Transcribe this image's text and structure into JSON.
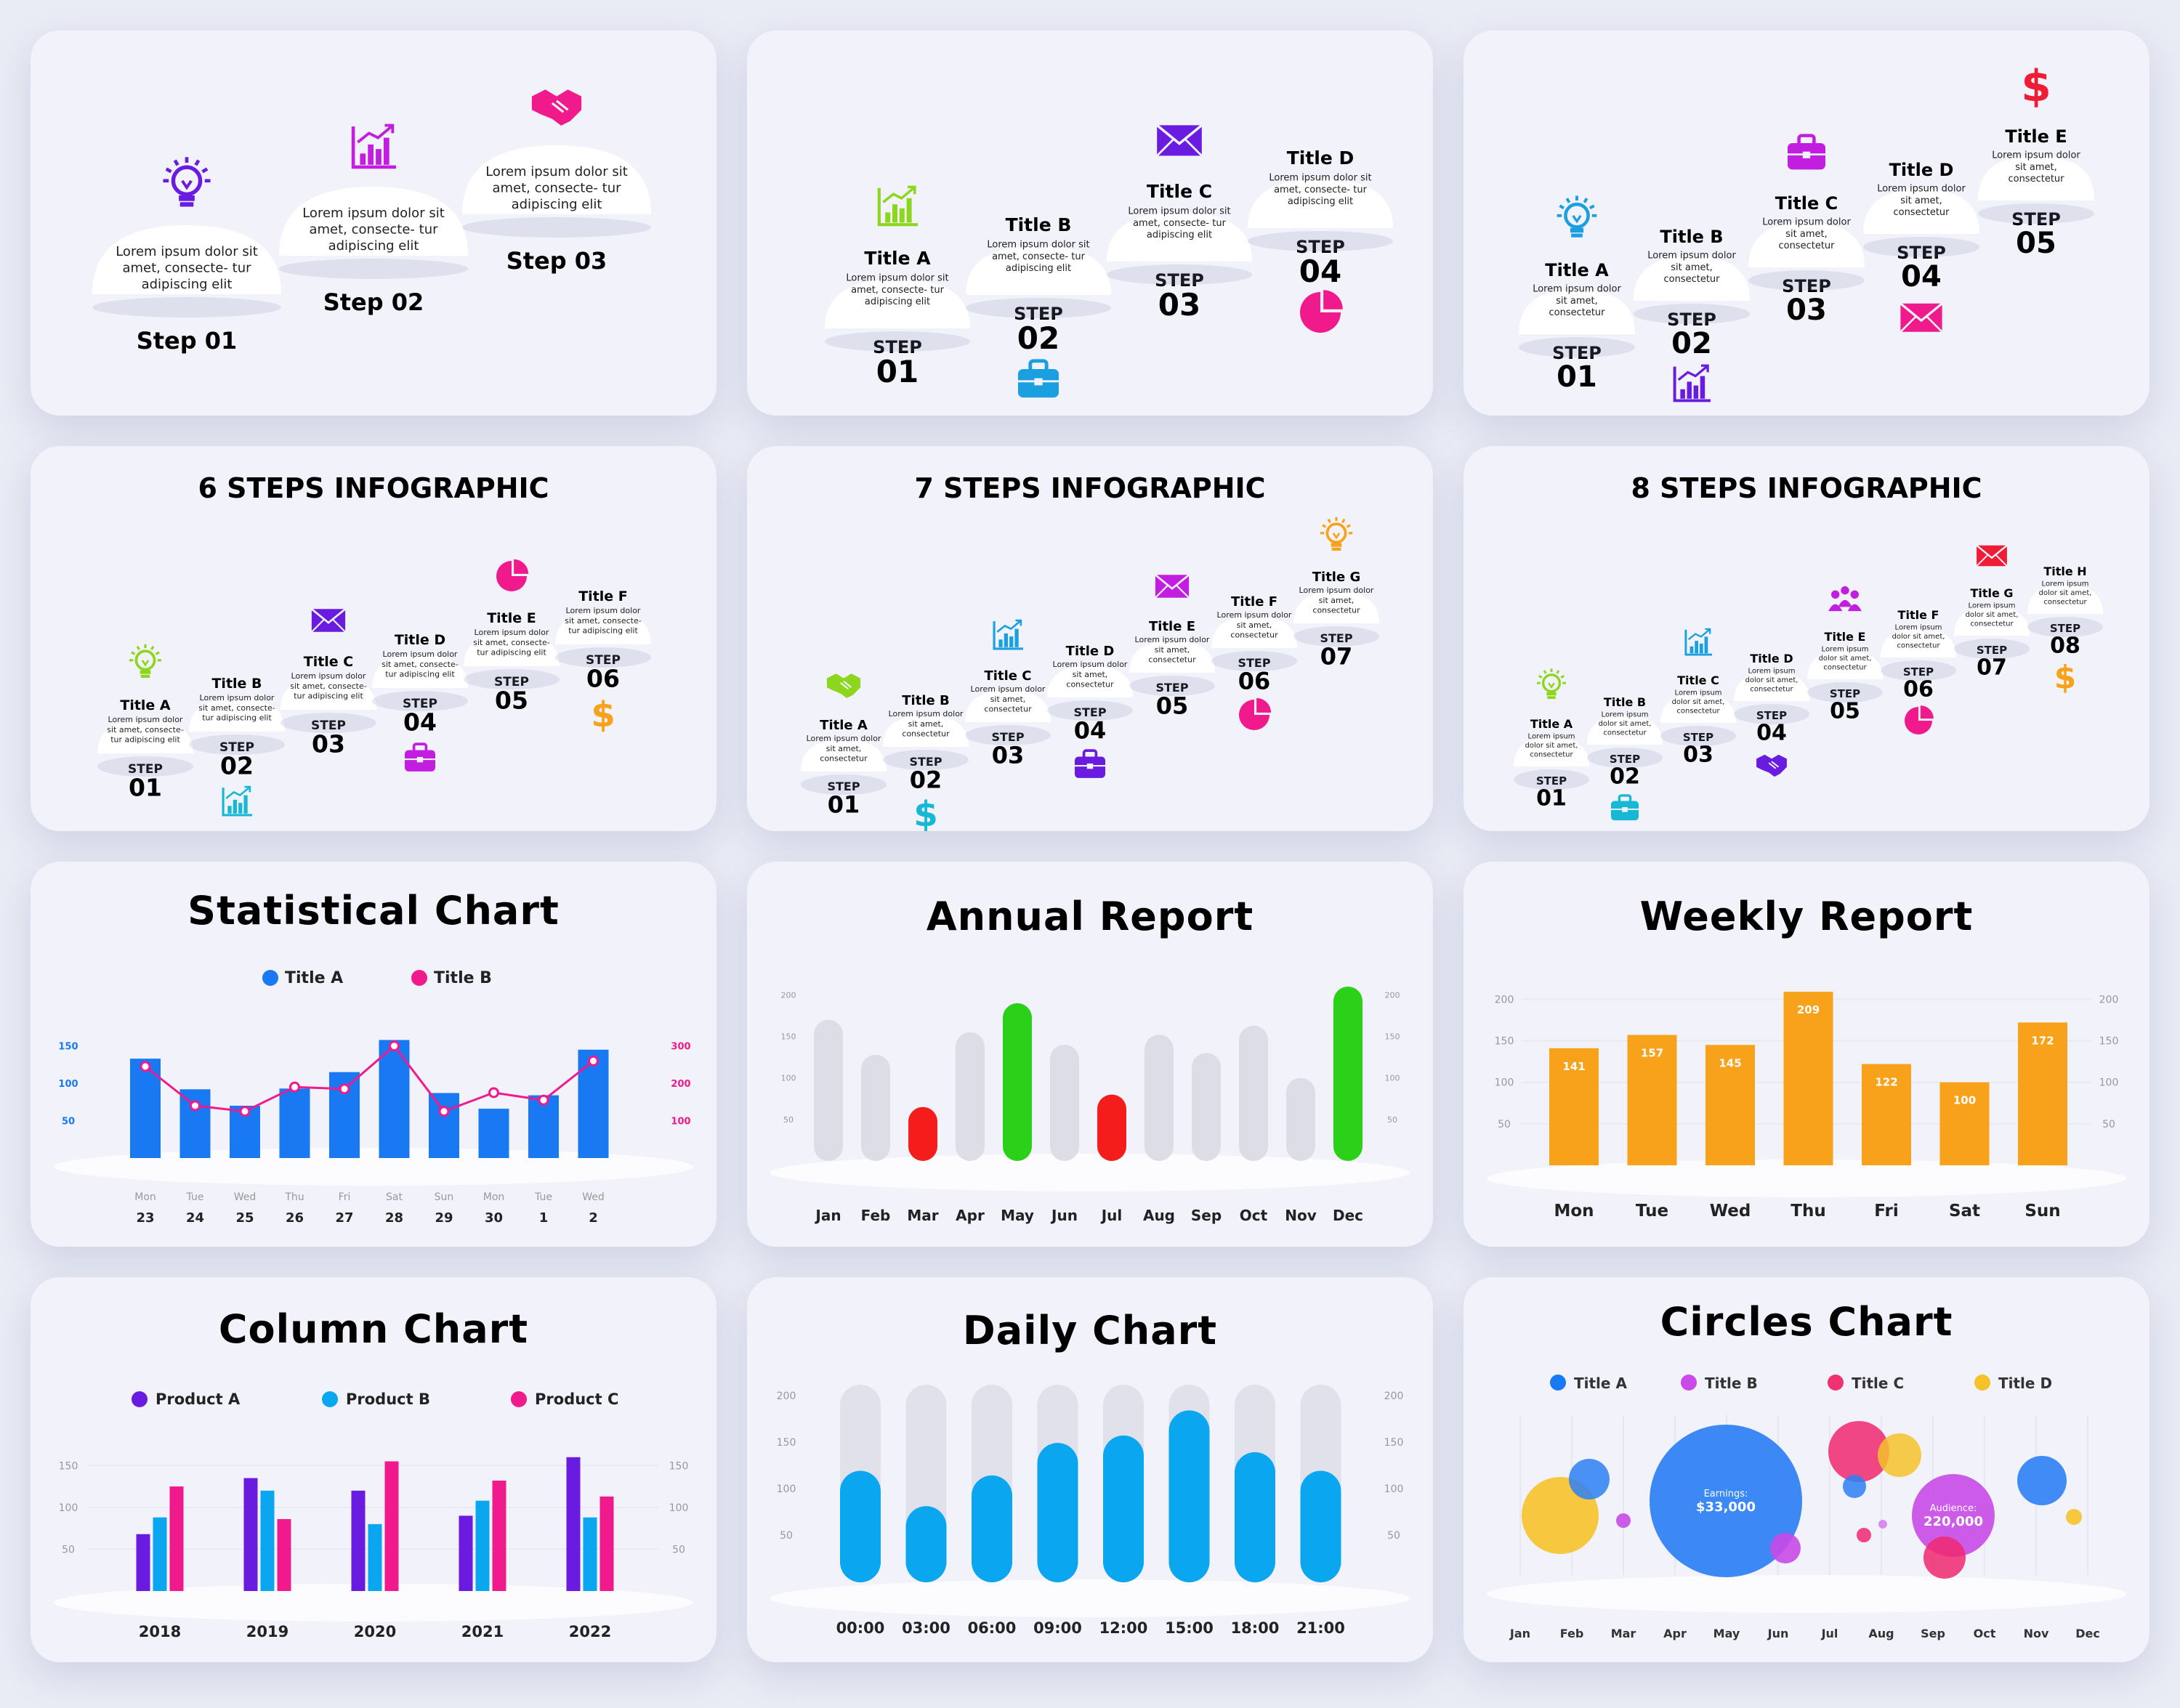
{
  "colors": {
    "purple": "#6a1be0",
    "green": "#8cd61e",
    "teal": "#17b8d6",
    "cyan": "#1a9fe0",
    "magenta": "#c21ee0",
    "pink": "#f01a8c",
    "red": "#ef1c36",
    "orange": "#f7a21a",
    "blue": "#1979f2",
    "grey_bar": "#dcdde6",
    "green_bar": "#2bd118",
    "red_bar": "#f51c1c",
    "light_blue": "#0aa6f0"
  },
  "steps3": {
    "items": [
      {
        "label": "Step 01",
        "text": "Lorem ipsum dolor sit amet, consecte- tur adipiscing elit",
        "icon": "lightbulb-icon",
        "color": "purple"
      },
      {
        "label": "Step 02",
        "text": "Lorem ipsum dolor sit amet, consecte- tur adipiscing elit",
        "icon": "bar-chart-icon",
        "color": "magenta"
      },
      {
        "label": "Step 03",
        "text": "Lorem ipsum dolor sit amet, consecte- tur adipiscing elit",
        "icon": "handshake-icon",
        "color": "pink"
      }
    ]
  },
  "steps4": {
    "items": [
      {
        "step": "STEP",
        "num": "01",
        "title": "Title A",
        "text": "Lorem ipsum dolor sit amet, consecte- tur adipiscing elit",
        "icon": "bar-chart-icon",
        "color": "green"
      },
      {
        "step": "STEP",
        "num": "02",
        "title": "Title B",
        "text": "Lorem ipsum dolor sit amet, consecte- tur adipiscing elit",
        "icon": "briefcase-icon",
        "color": "cyan"
      },
      {
        "step": "STEP",
        "num": "03",
        "title": "Title C",
        "text": "Lorem ipsum dolor sit amet, consecte- tur adipiscing elit",
        "icon": "envelope-icon",
        "color": "purple"
      },
      {
        "step": "STEP",
        "num": "04",
        "title": "Title D",
        "text": "Lorem ipsum dolor sit amet, consecte- tur adipiscing elit",
        "icon": "pie-chart-icon",
        "color": "pink"
      }
    ]
  },
  "steps5": {
    "items": [
      {
        "step": "STEP",
        "num": "01",
        "title": "Title A",
        "text": "Lorem ipsum dolor sit amet, consectetur",
        "icon": "lightbulb-icon",
        "color": "cyan"
      },
      {
        "step": "STEP",
        "num": "02",
        "title": "Title B",
        "text": "Lorem ipsum dolor sit amet, consectetur",
        "icon": "bar-chart-icon",
        "color": "purple"
      },
      {
        "step": "STEP",
        "num": "03",
        "title": "Title C",
        "text": "Lorem ipsum dolor sit amet, consectetur",
        "icon": "briefcase-icon",
        "color": "magenta"
      },
      {
        "step": "STEP",
        "num": "04",
        "title": "Title D",
        "text": "Lorem ipsum dolor sit amet, consectetur",
        "icon": "envelope-icon",
        "color": "pink"
      },
      {
        "step": "STEP",
        "num": "05",
        "title": "Title E",
        "text": "Lorem ipsum dolor sit amet, consectetur",
        "icon": "dollar-icon",
        "color": "red"
      }
    ]
  },
  "steps6": {
    "title": "6 STEPS INFOGRAPHIC",
    "items": [
      {
        "step": "STEP",
        "num": "01",
        "title": "Title A",
        "text": "Lorem ipsum dolor sit amet, consecte- tur adipiscing elit",
        "icon": "lightbulb-icon",
        "color": "green"
      },
      {
        "step": "STEP",
        "num": "02",
        "title": "Title B",
        "text": "Lorem ipsum dolor sit amet, consecte- tur adipiscing elit",
        "icon": "bar-chart-icon",
        "color": "teal"
      },
      {
        "step": "STEP",
        "num": "03",
        "title": "Title C",
        "text": "Lorem ipsum dolor sit amet, consecte- tur adipiscing elit",
        "icon": "envelope-icon",
        "color": "purple"
      },
      {
        "step": "STEP",
        "num": "04",
        "title": "Title D",
        "text": "Lorem ipsum dolor sit amet, consecte- tur adipiscing elit",
        "icon": "briefcase-icon",
        "color": "magenta"
      },
      {
        "step": "STEP",
        "num": "05",
        "title": "Title E",
        "text": "Lorem ipsum dolor sit amet, consecte- tur adipiscing elit",
        "icon": "pie-chart-icon",
        "color": "pink"
      },
      {
        "step": "STEP",
        "num": "06",
        "title": "Title F",
        "text": "Lorem ipsum dolor sit amet, consecte- tur adipiscing elit",
        "icon": "dollar-icon",
        "color": "orange"
      }
    ]
  },
  "steps7": {
    "title": "7 STEPS INFOGRAPHIC",
    "items": [
      {
        "step": "STEP",
        "num": "01",
        "title": "Title A",
        "text": "Lorem ipsum dolor sit amet, consectetur",
        "icon": "handshake-icon",
        "color": "green"
      },
      {
        "step": "STEP",
        "num": "02",
        "title": "Title B",
        "text": "Lorem ipsum dolor sit amet, consectetur",
        "icon": "dollar-icon",
        "color": "teal"
      },
      {
        "step": "STEP",
        "num": "03",
        "title": "Title C",
        "text": "Lorem ipsum dolor sit amet, consectetur",
        "icon": "bar-chart-icon",
        "color": "cyan"
      },
      {
        "step": "STEP",
        "num": "04",
        "title": "Title D",
        "text": "Lorem ipsum dolor sit amet, consectetur",
        "icon": "briefcase-icon",
        "color": "purple"
      },
      {
        "step": "STEP",
        "num": "05",
        "title": "Title E",
        "text": "Lorem ipsum dolor sit amet, consectetur",
        "icon": "envelope-icon",
        "color": "magenta"
      },
      {
        "step": "STEP",
        "num": "06",
        "title": "Title F",
        "text": "Lorem ipsum dolor sit amet, consectetur",
        "icon": "pie-chart-icon",
        "color": "pink"
      },
      {
        "step": "STEP",
        "num": "07",
        "title": "Title G",
        "text": "Lorem ipsum dolor sit amet, consectetur",
        "icon": "lightbulb-icon",
        "color": "orange"
      }
    ]
  },
  "steps8": {
    "title": "8 STEPS INFOGRAPHIC",
    "items": [
      {
        "step": "STEP",
        "num": "01",
        "title": "Title A",
        "text": "Lorem ipsum dolor sit amet, consectetur",
        "icon": "lightbulb-icon",
        "color": "green"
      },
      {
        "step": "STEP",
        "num": "02",
        "title": "Title B",
        "text": "Lorem ipsum dolor sit amet, consectetur",
        "icon": "briefcase-icon",
        "color": "teal"
      },
      {
        "step": "STEP",
        "num": "03",
        "title": "Title C",
        "text": "Lorem ipsum dolor sit amet, consectetur",
        "icon": "bar-chart-icon",
        "color": "cyan"
      },
      {
        "step": "STEP",
        "num": "04",
        "title": "Title D",
        "text": "Lorem ipsum dolor sit amet, consectetur",
        "icon": "handshake-icon",
        "color": "purple"
      },
      {
        "step": "STEP",
        "num": "05",
        "title": "Title E",
        "text": "Lorem ipsum dolor sit amet, consectetur",
        "icon": "people-icon",
        "color": "magenta"
      },
      {
        "step": "STEP",
        "num": "06",
        "title": "Title F",
        "text": "Lorem ipsum dolor sit amet, consectetur",
        "icon": "pie-chart-icon",
        "color": "pink"
      },
      {
        "step": "STEP",
        "num": "07",
        "title": "Title G",
        "text": "Lorem ipsum dolor sit amet, consectetur",
        "icon": "envelope-icon",
        "color": "red"
      },
      {
        "step": "STEP",
        "num": "08",
        "title": "Title H",
        "text": "Lorem ipsum dolor sit amet, consectetur",
        "icon": "dollar-icon",
        "color": "orange"
      }
    ]
  },
  "chart_data": [
    {
      "id": "statistical",
      "type": "bar",
      "title": "Statistical Chart",
      "legend": [
        "Title A",
        "Title B"
      ],
      "categories": [
        "Mon 23",
        "Tue 24",
        "Wed 25",
        "Thu 26",
        "Fri 27",
        "Sat 28",
        "Sun 29",
        "Mon 30",
        "Tue 1",
        "Wed 2"
      ],
      "days": [
        "Mon",
        "Tue",
        "Wed",
        "Thu",
        "Fri",
        "Sat",
        "Sun",
        "Mon",
        "Tue",
        "Wed"
      ],
      "dates": [
        "23",
        "24",
        "25",
        "26",
        "27",
        "28",
        "29",
        "30",
        "1",
        "2"
      ],
      "series": [
        {
          "name": "Title A",
          "type": "bar",
          "values": [
            133,
            92,
            70,
            93,
            115,
            158,
            87,
            66,
            84,
            145
          ]
        },
        {
          "name": "Title B",
          "type": "line",
          "values": [
            245,
            140,
            125,
            190,
            185,
            300,
            125,
            175,
            155,
            260
          ]
        }
      ],
      "ylim": [
        0,
        175
      ],
      "yticks": [
        "50",
        "100",
        "150"
      ],
      "y2lim": [
        0,
        350
      ],
      "y2ticks": [
        "100",
        "200",
        "300"
      ]
    },
    {
      "id": "annual",
      "type": "bar",
      "title": "Annual Report",
      "categories": [
        "Jan",
        "Feb",
        "Mar",
        "Apr",
        "May",
        "Jun",
        "Jul",
        "Aug",
        "Sep",
        "Oct",
        "Nov",
        "Dec"
      ],
      "values": [
        170,
        128,
        65,
        155,
        190,
        140,
        80,
        152,
        130,
        163,
        100,
        210
      ],
      "highlight": {
        "Mar": "red",
        "May": "green",
        "Jul": "red",
        "Dec": "green"
      },
      "ylim": [
        0,
        210
      ],
      "yticks": [
        "50",
        "100",
        "150",
        "200"
      ]
    },
    {
      "id": "weekly",
      "type": "bar",
      "title": "Weekly Report",
      "categories": [
        "Mon",
        "Tue",
        "Wed",
        "Thu",
        "Fri",
        "Sat",
        "Sun"
      ],
      "values": [
        141,
        157,
        145,
        209,
        122,
        100,
        172
      ],
      "labels": [
        "141",
        "157",
        "145",
        "209",
        "122",
        "100",
        "172"
      ],
      "ylim": [
        0,
        210
      ],
      "yticks": [
        "50",
        "100",
        "150",
        "200"
      ]
    },
    {
      "id": "column",
      "type": "bar",
      "title": "Column Chart",
      "categories": [
        "2018",
        "2019",
        "2020",
        "2021",
        "2022"
      ],
      "series": [
        {
          "name": "Product A",
          "values": [
            68,
            135,
            120,
            90,
            160
          ]
        },
        {
          "name": "Product B",
          "values": [
            88,
            120,
            80,
            108,
            88
          ]
        },
        {
          "name": "Product C",
          "values": [
            125,
            86,
            155,
            132,
            113
          ]
        }
      ],
      "ylim": [
        0,
        165
      ],
      "yticks": [
        "50",
        "100",
        "150"
      ]
    },
    {
      "id": "daily",
      "type": "bar",
      "title": "Daily Chart",
      "categories": [
        "00:00",
        "03:00",
        "06:00",
        "09:00",
        "12:00",
        "15:00",
        "18:00",
        "21:00"
      ],
      "values": [
        120,
        82,
        115,
        150,
        158,
        185,
        140,
        120
      ],
      "ylim": [
        0,
        215
      ],
      "yticks": [
        "50",
        "100",
        "150",
        "200"
      ]
    },
    {
      "id": "circles",
      "type": "scatter",
      "title": "Circles Chart",
      "legend": [
        "Title A",
        "Title B",
        "Title C",
        "Title D"
      ],
      "categories": [
        "Jan",
        "Feb",
        "Mar",
        "Apr",
        "May",
        "Jun",
        "Jul",
        "Aug",
        "Sep",
        "Oct",
        "Nov",
        "Dec"
      ],
      "annotations": [
        {
          "title": "Earnings:",
          "value": "$33,000"
        },
        {
          "title": "Audience:",
          "value": "220,000"
        }
      ]
    }
  ]
}
